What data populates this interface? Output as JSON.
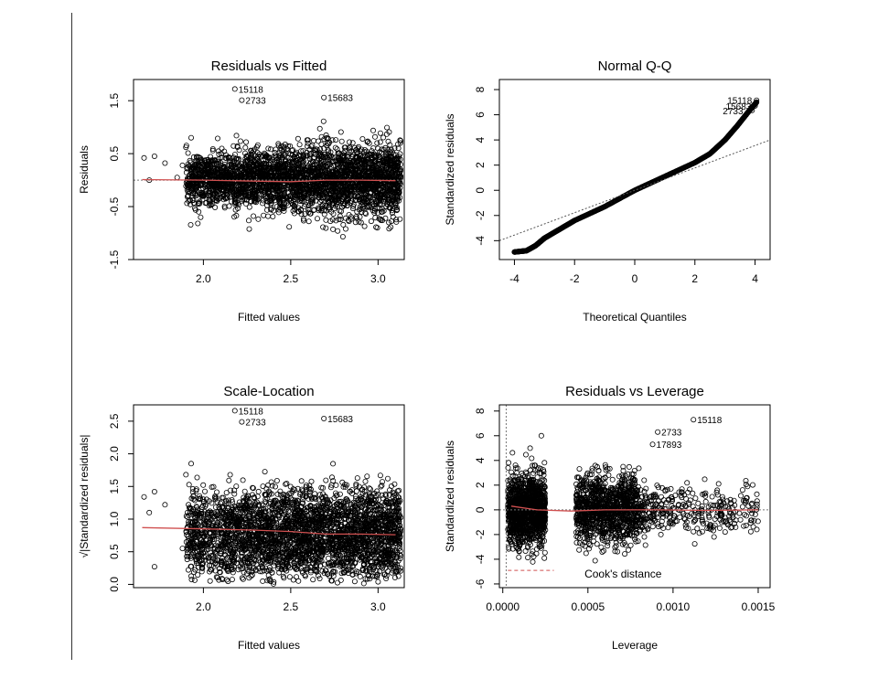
{
  "chart_data": [
    {
      "type": "scatter",
      "title": "Residuals vs Fitted",
      "xlabel": "Fitted values",
      "ylabel": "Residuals",
      "xlim": [
        1.6,
        3.15
      ],
      "ylim": [
        -1.5,
        1.9
      ],
      "xticks": [
        2.0,
        2.5,
        3.0
      ],
      "xtick_labels": [
        "2.0",
        "2.5",
        "3.0"
      ],
      "yticks": [
        -1.5,
        -0.5,
        0.5,
        1.5
      ],
      "ytick_labels": [
        "-1.5",
        "-0.5",
        "0.5",
        "1.5"
      ],
      "smooth_line": {
        "color": "#d05050",
        "x": [
          1.65,
          2.0,
          2.3,
          2.5,
          2.7,
          2.9,
          3.1
        ],
        "y": [
          0.01,
          0.0,
          -0.02,
          -0.03,
          0.0,
          0.0,
          -0.01
        ]
      },
      "reference_line": {
        "y": 0,
        "style": "dotted"
      },
      "point_labels": [
        {
          "label": "15118",
          "x": 2.18,
          "y": 1.72
        },
        {
          "label": "2733",
          "x": 2.22,
          "y": 1.51
        },
        {
          "label": "15683",
          "x": 2.69,
          "y": 1.56
        }
      ],
      "points_extra": [
        [
          1.66,
          0.42
        ],
        [
          1.69,
          0.0
        ],
        [
          1.72,
          0.45
        ],
        [
          1.78,
          0.32
        ],
        [
          1.85,
          0.05
        ],
        [
          1.88,
          0.28
        ],
        [
          1.9,
          0.62
        ],
        [
          1.93,
          0.8
        ]
      ],
      "cloud": {
        "x_range": [
          1.9,
          3.13
        ],
        "y_sd": 0.32
      }
    },
    {
      "type": "scatter",
      "title": "Normal Q-Q",
      "xlabel": "Theoretical Quantiles",
      "ylabel": "Standardized residuals",
      "xlim": [
        -4.5,
        4.5
      ],
      "ylim": [
        -5.5,
        8.8
      ],
      "xticks": [
        -4,
        -2,
        0,
        2,
        4
      ],
      "xtick_labels": [
        "-4",
        "-2",
        "0",
        "2",
        "4"
      ],
      "yticks": [
        -4,
        -2,
        0,
        2,
        4,
        6,
        8
      ],
      "ytick_labels": [
        "-4",
        "-2",
        "0",
        "2",
        "4",
        "6",
        "8"
      ],
      "reference_line": {
        "x": [
          -4.5,
          4.5
        ],
        "y": [
          -4.0,
          4.0
        ],
        "style": "dotted"
      },
      "qq_curve": {
        "x": [
          -4.0,
          -3.6,
          -3.3,
          -3.0,
          -2.5,
          -2.0,
          -1.0,
          0.0,
          1.0,
          2.0,
          2.5,
          3.0,
          3.4,
          3.8,
          4.05
        ],
        "y": [
          -4.9,
          -4.8,
          -4.4,
          -3.8,
          -3.1,
          -2.4,
          -1.3,
          0.0,
          1.1,
          2.2,
          2.9,
          4.0,
          5.1,
          6.3,
          7.0
        ]
      },
      "point_labels": [
        {
          "label": "15118",
          "x": 4.05,
          "y": 7.15
        },
        {
          "label": "15683",
          "x": 4.0,
          "y": 6.7
        },
        {
          "label": "2733",
          "x": 3.9,
          "y": 6.35
        }
      ]
    },
    {
      "type": "scatter",
      "title": "Scale-Location",
      "xlabel": "Fitted values",
      "ylabel": "√|Standardized residuals|",
      "xlim": [
        1.6,
        3.15
      ],
      "ylim": [
        -0.05,
        2.75
      ],
      "xticks": [
        2.0,
        2.5,
        3.0
      ],
      "xtick_labels": [
        "2.0",
        "2.5",
        "3.0"
      ],
      "yticks": [
        0.0,
        0.5,
        1.0,
        1.5,
        2.0,
        2.5
      ],
      "ytick_labels": [
        "0.0",
        "0.5",
        "1.0",
        "1.5",
        "2.0",
        "2.5"
      ],
      "smooth_line": {
        "color": "#d05050",
        "x": [
          1.65,
          2.0,
          2.3,
          2.5,
          2.7,
          2.9,
          3.1
        ],
        "y": [
          0.87,
          0.85,
          0.83,
          0.81,
          0.77,
          0.77,
          0.76
        ]
      },
      "point_labels": [
        {
          "label": "15118",
          "x": 2.18,
          "y": 2.66
        },
        {
          "label": "2733",
          "x": 2.22,
          "y": 2.49
        },
        {
          "label": "15683",
          "x": 2.69,
          "y": 2.54
        }
      ],
      "points_extra": [
        [
          1.66,
          1.34
        ],
        [
          1.69,
          1.1
        ],
        [
          1.72,
          1.42
        ],
        [
          1.78,
          1.22
        ],
        [
          1.72,
          0.27
        ],
        [
          1.88,
          0.55
        ],
        [
          1.9,
          1.68
        ],
        [
          1.93,
          1.85
        ]
      ],
      "cloud": {
        "x_range": [
          1.9,
          3.13
        ],
        "y_range": [
          0.0,
          2.2
        ]
      }
    },
    {
      "type": "scatter",
      "title": "Residuals vs Leverage",
      "xlabel": "Leverage",
      "ylabel": "Standardized residuals",
      "xlim": [
        -2e-05,
        0.00157
      ],
      "ylim": [
        -6.3,
        8.5
      ],
      "xticks": [
        0.0,
        0.0005,
        0.001,
        0.0015
      ],
      "xtick_labels": [
        "0.0000",
        "0.0005",
        "0.0010",
        "0.0015"
      ],
      "yticks": [
        -6,
        -4,
        -2,
        0,
        2,
        4,
        6,
        8
      ],
      "ytick_labels": [
        "-6",
        "-4",
        "-2",
        "0",
        "2",
        "4",
        "6",
        "8"
      ],
      "smooth_line": {
        "color": "#d05050",
        "x": [
          5e-05,
          0.0002,
          0.0004,
          0.0006,
          0.0009,
          0.0012,
          0.0015
        ],
        "y": [
          0.3,
          0.0,
          -0.1,
          0.0,
          0.0,
          -0.05,
          0.0
        ]
      },
      "reference_line": {
        "y": 0,
        "style": "dotted"
      },
      "cooks_label": "Cook's distance",
      "point_labels": [
        {
          "label": "15118",
          "x": 0.00112,
          "y": 7.3
        },
        {
          "label": "2733",
          "x": 0.00091,
          "y": 6.3
        },
        {
          "label": "17893",
          "x": 0.00088,
          "y": 5.3
        }
      ],
      "cloud": {
        "x_range": [
          3e-05,
          0.0015
        ]
      }
    }
  ]
}
